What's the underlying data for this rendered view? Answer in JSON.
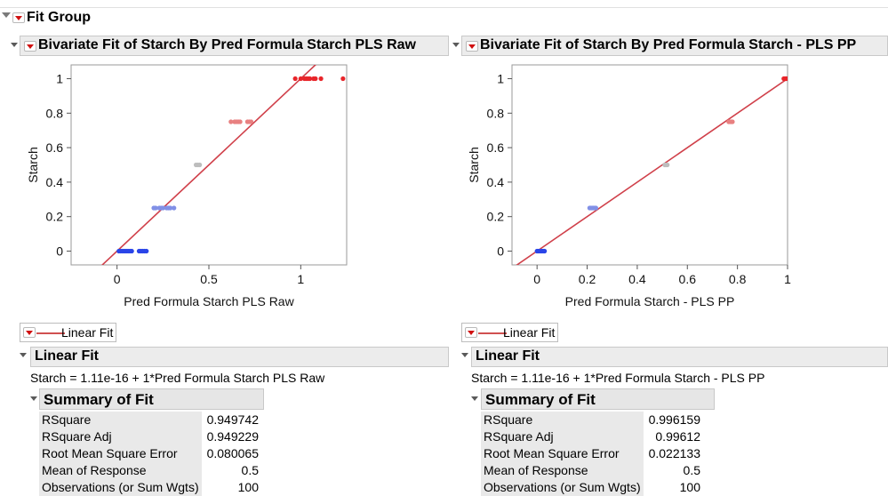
{
  "group": {
    "title": "Fit Group"
  },
  "panels": [
    {
      "title": "Bivariate Fit of Starch By Pred Formula Starch PLS Raw",
      "legend_label": "Linear Fit",
      "linear_fit_title": "Linear Fit",
      "equation": "Starch = 1.11e-16 + 1*Pred Formula Starch PLS Raw",
      "summary_title": "Summary of Fit",
      "summary": [
        {
          "label": "RSquare",
          "value": "0.949742"
        },
        {
          "label": "RSquare Adj",
          "value": "0.949229"
        },
        {
          "label": "Root Mean Square Error",
          "value": "0.080065"
        },
        {
          "label": "Mean of Response",
          "value": "0.5"
        },
        {
          "label": "Observations (or Sum Wgts)",
          "value": "100"
        }
      ]
    },
    {
      "title": "Bivariate Fit of Starch By Pred Formula Starch - PLS PP",
      "legend_label": "Linear Fit",
      "linear_fit_title": "Linear Fit",
      "equation": "Starch = 1.11e-16 + 1*Pred Formula Starch - PLS PP",
      "summary_title": "Summary of Fit",
      "summary": [
        {
          "label": "RSquare",
          "value": "0.996159"
        },
        {
          "label": "RSquare Adj",
          "value": "0.99612"
        },
        {
          "label": "Root Mean Square Error",
          "value": "0.022133"
        },
        {
          "label": "Mean of Response",
          "value": "0.5"
        },
        {
          "label": "Observations (or Sum Wgts)",
          "value": "100"
        }
      ]
    }
  ],
  "chart_data": [
    {
      "type": "scatter",
      "xlabel": "Pred Formula Starch PLS Raw",
      "ylabel": "Starch",
      "xlim": [
        -0.25,
        1.25
      ],
      "ylim": [
        -0.08,
        1.08
      ],
      "xticks": [
        0,
        0.5,
        1
      ],
      "xtick_labels": [
        "0",
        "0.5",
        "1"
      ],
      "yticks": [
        0,
        0.2,
        0.4,
        0.6,
        0.8,
        1
      ],
      "ytick_labels": [
        "0",
        "0.2",
        "0.4",
        "0.6",
        "0.8",
        "1"
      ],
      "fit_line": {
        "intercept": 0,
        "slope": 1,
        "color": "#d0404a"
      },
      "series": [
        {
          "y": 0,
          "color": "#2a45e8",
          "x": [
            0.01,
            0.02,
            0.03,
            0.04,
            0.05,
            0.06,
            0.07,
            0.08,
            0.12,
            0.13,
            0.14,
            0.15,
            0.16
          ]
        },
        {
          "y": 0.25,
          "color": "#8190e6",
          "x": [
            0.2,
            0.21,
            0.23,
            0.24,
            0.25,
            0.27,
            0.28,
            0.29,
            0.31
          ]
        },
        {
          "y": 0.5,
          "color": "#bdbdbd",
          "x": [
            0.43,
            0.44,
            0.45
          ]
        },
        {
          "y": 0.75,
          "color": "#e88080",
          "x": [
            0.62,
            0.64,
            0.65,
            0.66,
            0.67,
            0.71,
            0.72,
            0.73
          ]
        },
        {
          "y": 1,
          "color": "#e8252a",
          "x": [
            0.97,
            1.0,
            1.02,
            1.03,
            1.04,
            1.05,
            1.07,
            1.08,
            1.11,
            1.23
          ]
        }
      ]
    },
    {
      "type": "scatter",
      "xlabel": "Pred Formula Starch - PLS PP",
      "ylabel": "Starch",
      "xlim": [
        -0.1,
        1.0
      ],
      "ylim": [
        -0.08,
        1.08
      ],
      "xticks": [
        0,
        0.2,
        0.4,
        0.6,
        0.8,
        1
      ],
      "xtick_labels": [
        "0",
        "0.2",
        "0.4",
        "0.6",
        "0.8",
        "1"
      ],
      "yticks": [
        0,
        0.2,
        0.4,
        0.6,
        0.8,
        1
      ],
      "ytick_labels": [
        "0",
        "0.2",
        "0.4",
        "0.6",
        "0.8",
        "1"
      ],
      "fit_line": {
        "intercept": 0,
        "slope": 1,
        "color": "#d0404a"
      },
      "series": [
        {
          "y": 0,
          "color": "#2a45e8",
          "x": [
            0.0,
            0.005,
            0.01,
            0.015,
            0.02,
            0.025,
            0.03
          ]
        },
        {
          "y": 0.25,
          "color": "#8190e6",
          "x": [
            0.21,
            0.215,
            0.22,
            0.225,
            0.23,
            0.235
          ]
        },
        {
          "y": 0.5,
          "color": "#bdbdbd",
          "x": [
            0.51,
            0.515,
            0.52
          ]
        },
        {
          "y": 0.75,
          "color": "#e88080",
          "x": [
            0.765,
            0.77,
            0.775,
            0.78
          ]
        },
        {
          "y": 1,
          "color": "#e8252a",
          "x": [
            0.985,
            0.99,
            0.995,
            1.0
          ]
        }
      ]
    }
  ]
}
